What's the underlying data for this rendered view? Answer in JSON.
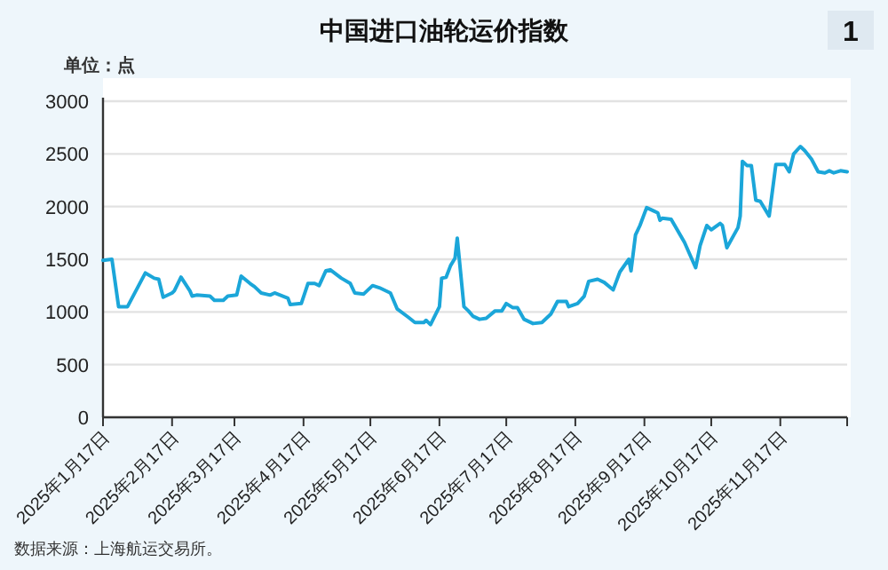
{
  "chart_data": {
    "type": "line",
    "title": "中国进口油轮运价指数",
    "ylabel": "单位：点",
    "annotations": [
      "1",
      "数据来源：上海航运交易所。"
    ],
    "x": [
      "2025-01-17",
      "2025-01-21",
      "2025-01-24",
      "2025-01-28",
      "2025-02-05",
      "2025-02-09",
      "2025-02-11",
      "2025-02-13",
      "2025-02-17",
      "2025-02-18",
      "2025-02-21",
      "2025-02-25",
      "2025-02-26",
      "2025-02-28",
      "2025-03-06",
      "2025-03-08",
      "2025-03-12",
      "2025-03-14",
      "2025-03-18",
      "2025-03-20",
      "2025-03-24",
      "2025-03-26",
      "2025-03-29",
      "2025-04-02",
      "2025-04-04",
      "2025-04-10",
      "2025-04-11",
      "2025-04-16",
      "2025-04-19",
      "2025-04-22",
      "2025-04-24",
      "2025-04-27",
      "2025-04-29",
      "2025-05-04",
      "2025-05-08",
      "2025-05-10",
      "2025-05-14",
      "2025-05-18",
      "2025-05-21",
      "2025-05-26",
      "2025-05-29",
      "2025-06-03",
      "2025-06-06",
      "2025-06-10",
      "2025-06-11",
      "2025-06-13",
      "2025-06-17",
      "2025-06-18",
      "2025-06-20",
      "2025-06-22",
      "2025-06-24",
      "2025-06-25",
      "2025-06-28",
      "2025-06-30",
      "2025-07-02",
      "2025-07-05",
      "2025-07-08",
      "2025-07-12",
      "2025-07-15",
      "2025-07-17",
      "2025-07-20",
      "2025-07-22",
      "2025-07-25",
      "2025-07-29",
      "2025-08-02",
      "2025-08-06",
      "2025-08-09",
      "2025-08-13",
      "2025-08-14",
      "2025-08-18",
      "2025-08-21",
      "2025-08-23",
      "2025-08-27",
      "2025-08-30",
      "2025-09-03",
      "2025-09-06",
      "2025-09-10",
      "2025-09-11",
      "2025-09-13",
      "2025-09-15",
      "2025-09-18",
      "2025-09-21",
      "2025-09-23",
      "2025-09-24",
      "2025-09-25",
      "2025-09-29",
      "2025-10-05",
      "2025-10-10",
      "2025-10-12",
      "2025-10-15",
      "2025-10-17",
      "2025-10-21",
      "2025-10-22",
      "2025-10-24",
      "2025-10-29",
      "2025-10-30",
      "2025-10-31",
      "2025-11-02",
      "2025-11-04",
      "2025-11-06",
      "2025-11-08",
      "2025-11-12",
      "2025-11-15",
      "2025-11-19",
      "2025-11-21",
      "2025-11-23",
      "2025-11-26",
      "2025-11-28",
      "2025-12-01",
      "2025-12-04",
      "2025-12-07",
      "2025-12-09",
      "2025-12-11",
      "2025-12-14",
      "2025-12-17"
    ],
    "series": [
      {
        "color": "#1ba6d9",
        "values": [
          1490,
          1500,
          1050,
          1050,
          1370,
          1320,
          1310,
          1140,
          1180,
          1200,
          1330,
          1200,
          1150,
          1160,
          1150,
          1110,
          1110,
          1150,
          1160,
          1340,
          1270,
          1240,
          1180,
          1160,
          1180,
          1130,
          1070,
          1080,
          1270,
          1270,
          1250,
          1390,
          1400,
          1320,
          1270,
          1180,
          1170,
          1250,
          1230,
          1180,
          1030,
          950,
          900,
          900,
          920,
          880,
          1050,
          1320,
          1330,
          1440,
          1510,
          1700,
          1050,
          1010,
          960,
          930,
          940,
          1010,
          1010,
          1080,
          1040,
          1040,
          930,
          890,
          900,
          980,
          1100,
          1100,
          1050,
          1080,
          1150,
          1290,
          1310,
          1280,
          1210,
          1380,
          1500,
          1390,
          1730,
          1820,
          1990,
          1960,
          1940,
          1870,
          1890,
          1880,
          1660,
          1420,
          1630,
          1820,
          1780,
          1840,
          1820,
          1610,
          1800,
          1910,
          2430,
          2390,
          2390,
          2060,
          2050,
          1910,
          2400,
          2400,
          2330,
          2500,
          2570,
          2530,
          2450,
          2330,
          2320,
          2340,
          2320,
          2340,
          2330
        ]
      }
    ],
    "xlim": [
      "2025-01-17",
      "2025-12-17"
    ],
    "xticks": [
      {
        "value": "2025-01-17",
        "label": "2025年1月17日"
      },
      {
        "value": "2025-02-17",
        "label": "2025年2月17日"
      },
      {
        "value": "2025-03-17",
        "label": "2025年3月17日"
      },
      {
        "value": "2025-04-17",
        "label": "2025年4月17日"
      },
      {
        "value": "2025-05-17",
        "label": "2025年5月17日"
      },
      {
        "value": "2025-06-17",
        "label": "2025年6月17日"
      },
      {
        "value": "2025-07-17",
        "label": "2025年7月17日"
      },
      {
        "value": "2025-08-17",
        "label": "2025年8月17日"
      },
      {
        "value": "2025-09-17",
        "label": "2025年9月17日"
      },
      {
        "value": "2025-10-17",
        "label": "2025年10月17日"
      },
      {
        "value": "2025-11-17",
        "label": "2025年11月17日"
      },
      {
        "value": "2025-12-17",
        "label": null
      }
    ],
    "ylim": [
      0,
      3000
    ],
    "yticks": [
      0,
      500,
      1000,
      1500,
      2000,
      2500,
      3000
    ],
    "grid": "y"
  }
}
